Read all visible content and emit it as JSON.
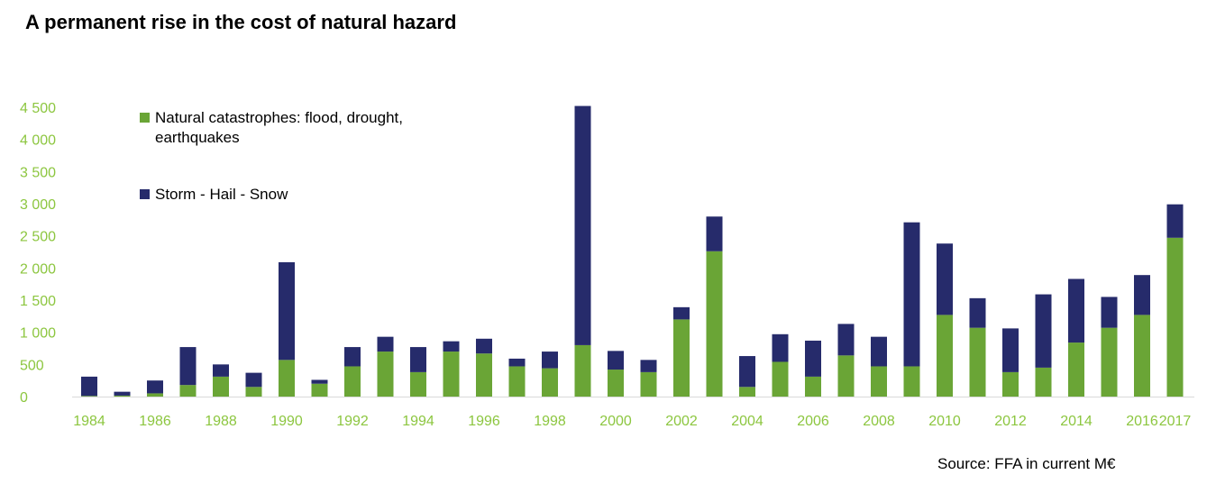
{
  "title": "A permanent rise in the cost of natural hazard",
  "source": "Source: FFA in current M€",
  "colors": {
    "natural": "#6aa536",
    "storm": "#262b6b",
    "axis_text": "#8cc63f",
    "axis_line": "#d9d9d9"
  },
  "chart_data": {
    "type": "bar",
    "stacked": true,
    "x": [
      1984,
      1985,
      1986,
      1987,
      1988,
      1989,
      1990,
      1991,
      1992,
      1993,
      1994,
      1995,
      1996,
      1997,
      1998,
      1999,
      2000,
      2001,
      2002,
      2003,
      2004,
      2005,
      2006,
      2007,
      2008,
      2009,
      2010,
      2011,
      2012,
      2013,
      2014,
      2015,
      2016,
      2017
    ],
    "x_tick_labels": [
      "1984",
      "1986",
      "1988",
      "1990",
      "1992",
      "1994",
      "1996",
      "1998",
      "2000",
      "2002",
      "2004",
      "2006",
      "2008",
      "2010",
      "2012",
      "2014",
      "2016",
      "2017"
    ],
    "series": [
      {
        "name": "Natural catastrophes: flood, drought, earthquakes",
        "values": [
          10,
          15,
          50,
          180,
          310,
          150,
          570,
          200,
          470,
          700,
          380,
          700,
          670,
          470,
          440,
          800,
          420,
          380,
          1200,
          2260,
          150,
          540,
          310,
          640,
          470,
          470,
          1270,
          1070,
          380,
          450,
          840,
          1070,
          1270,
          2470
        ]
      },
      {
        "name": "Storm - Hail - Snow",
        "values": [
          300,
          60,
          200,
          590,
          190,
          220,
          1520,
          60,
          300,
          230,
          390,
          160,
          230,
          120,
          260,
          3720,
          290,
          190,
          190,
          540,
          480,
          430,
          560,
          490,
          460,
          2240,
          1110,
          460,
          680,
          1140,
          990,
          480,
          620,
          520
        ]
      }
    ],
    "yticks": [
      0,
      500,
      1000,
      1500,
      2000,
      2500,
      3000,
      3500,
      4000,
      4500
    ],
    "ytick_labels": [
      "0",
      "500",
      "1 000",
      "1 500",
      "2 000",
      "2 500",
      "3 000",
      "3 500",
      "4 000",
      "4 500"
    ],
    "ylim": [
      0,
      4500
    ],
    "legend_position": "top-left",
    "grid": false
  }
}
